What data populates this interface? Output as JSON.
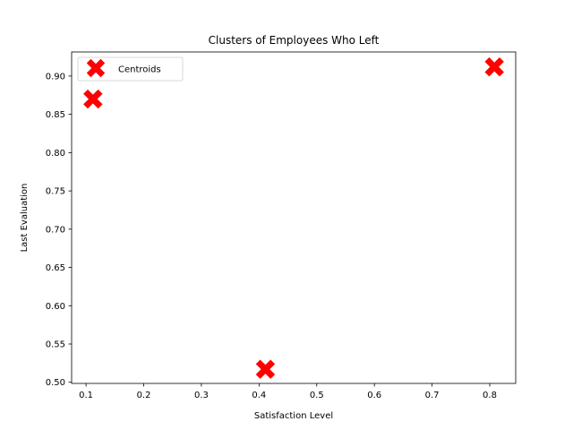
{
  "chart_data": {
    "type": "scatter",
    "title": "Clusters of Employees Who Left",
    "xlabel": "Satisfaction Level",
    "ylabel": "Last Evaluation",
    "xlim": [
      0.075,
      0.845
    ],
    "ylim": [
      0.4985,
      0.9315
    ],
    "xticks": [
      0.1,
      0.2,
      0.3,
      0.4,
      0.5,
      0.6,
      0.7,
      0.8
    ],
    "xtick_labels": [
      "0.1",
      "0.2",
      "0.3",
      "0.4",
      "0.5",
      "0.6",
      "0.7",
      "0.8"
    ],
    "yticks": [
      0.5,
      0.55,
      0.6,
      0.65,
      0.7,
      0.75,
      0.8,
      0.85,
      0.9
    ],
    "ytick_labels": [
      "0.50",
      "0.55",
      "0.60",
      "0.65",
      "0.70",
      "0.75",
      "0.80",
      "0.85",
      "0.90"
    ],
    "grid": false,
    "legend": "upper-left",
    "series": [
      {
        "name": "Centroids",
        "marker": "X",
        "color": "#ff0000",
        "points": [
          {
            "x": 0.112,
            "y": 0.87
          },
          {
            "x": 0.411,
            "y": 0.517
          },
          {
            "x": 0.808,
            "y": 0.912
          }
        ]
      }
    ]
  }
}
